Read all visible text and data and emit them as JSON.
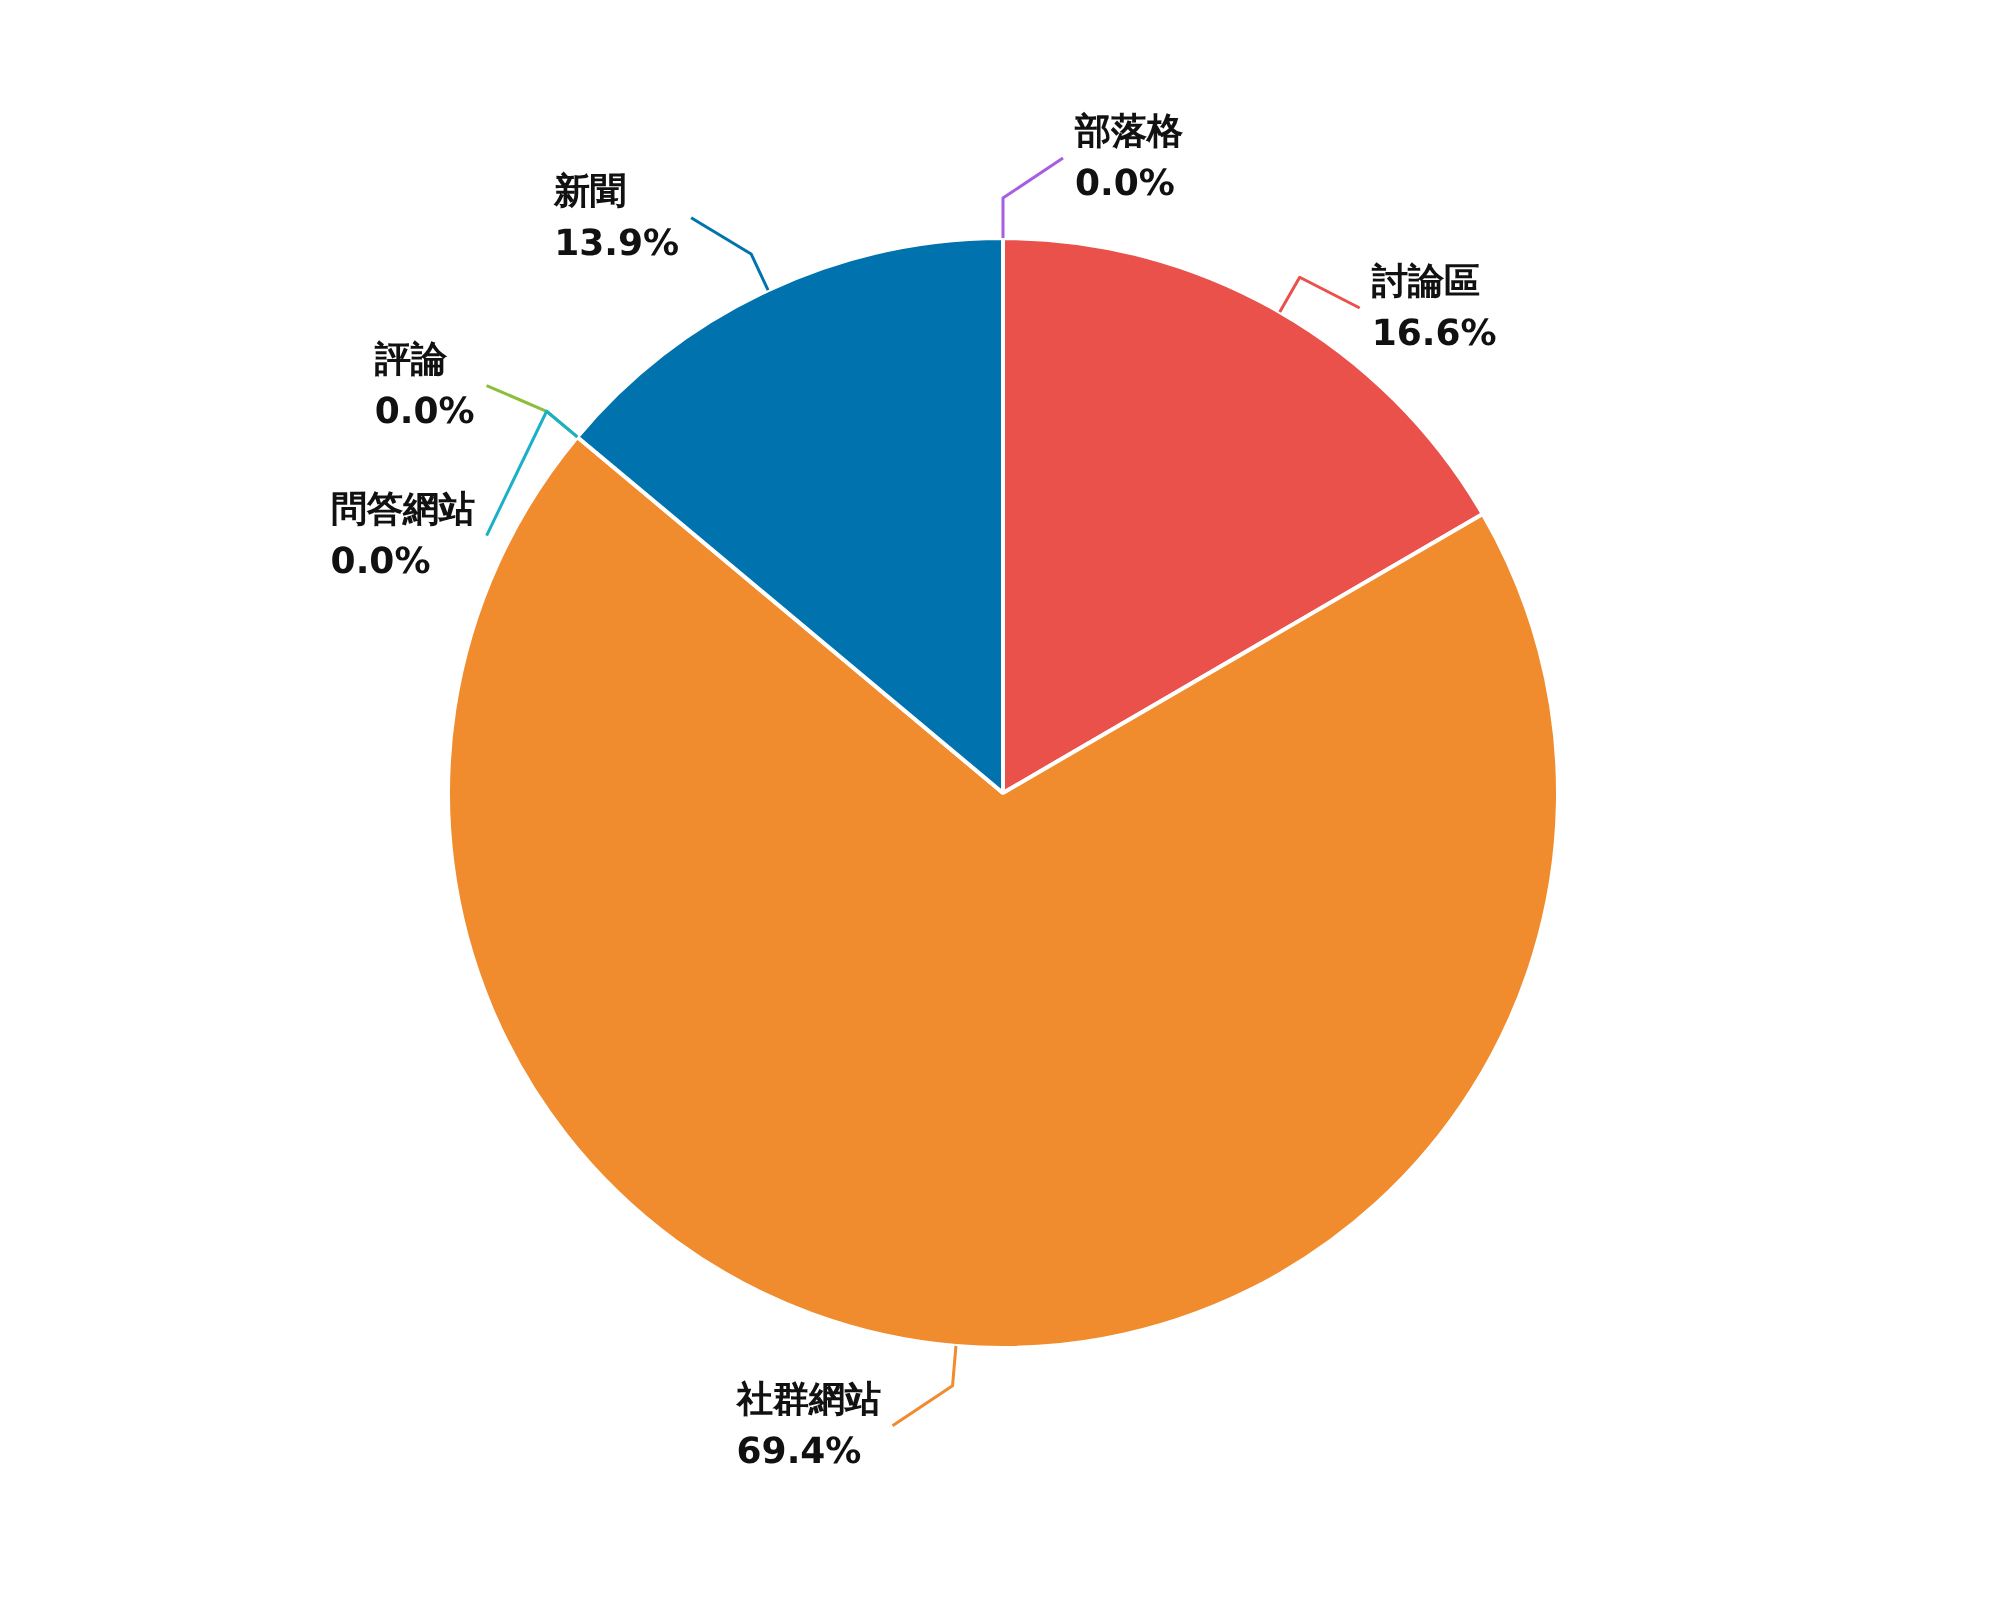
{
  "chart_data": {
    "type": "pie",
    "categories": [
      "討論區",
      "社群網站",
      "評論",
      "問答網站",
      "新聞",
      "部落格"
    ],
    "values": [
      16.6,
      69.4,
      0.0,
      0.0,
      13.9,
      0.0
    ],
    "colors": [
      "#e9514a",
      "#f08b2e",
      "#8bbf3a",
      "#1ab0c8",
      "#0073ae",
      "#a75ee0"
    ],
    "value_labels": [
      "16.6%",
      "69.4%",
      "0.0%",
      "0.0%",
      "13.9%",
      "0.0%"
    ],
    "legend": false
  }
}
